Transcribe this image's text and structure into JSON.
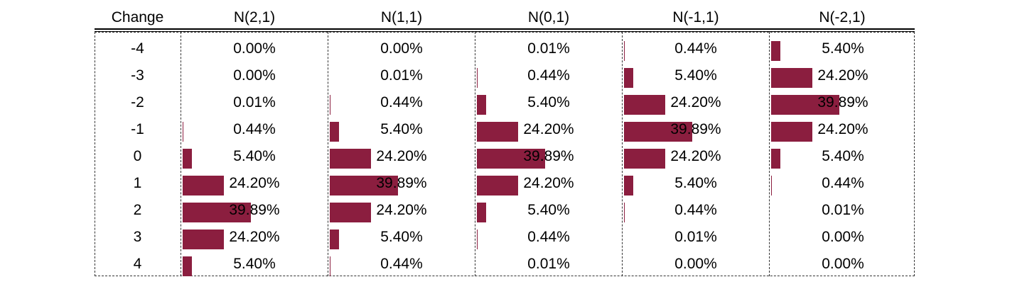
{
  "chart_data": {
    "type": "table",
    "bar_color": "#8b1e3f",
    "row_header": "Change",
    "columns": [
      "N(2,1)",
      "N(1,1)",
      "N(0,1)",
      "N(-1,1)",
      "N(-2,1)"
    ],
    "rows": [
      "-4",
      "-3",
      "-2",
      "-1",
      "0",
      "1",
      "2",
      "3",
      "4"
    ],
    "values": [
      [
        0.0,
        0.0,
        0.01,
        0.44,
        5.4
      ],
      [
        0.0,
        0.01,
        0.44,
        5.4,
        24.2
      ],
      [
        0.01,
        0.44,
        5.4,
        24.2,
        39.89
      ],
      [
        0.44,
        5.4,
        24.2,
        39.89,
        24.2
      ],
      [
        5.4,
        24.2,
        39.89,
        24.2,
        5.4
      ],
      [
        24.2,
        39.89,
        24.2,
        5.4,
        0.44
      ],
      [
        39.89,
        24.2,
        5.4,
        0.44,
        0.01
      ],
      [
        24.2,
        5.4,
        0.44,
        0.01,
        0.0
      ],
      [
        5.4,
        0.44,
        0.01,
        0.0,
        0.0
      ]
    ],
    "labels": [
      [
        "0.00%",
        "0.00%",
        "0.01%",
        "0.44%",
        "5.40%"
      ],
      [
        "0.00%",
        "0.01%",
        "0.44%",
        "5.40%",
        "24.20%"
      ],
      [
        "0.01%",
        "0.44%",
        "5.40%",
        "24.20%",
        "39.89%"
      ],
      [
        "0.44%",
        "5.40%",
        "24.20%",
        "39.89%",
        "24.20%"
      ],
      [
        "5.40%",
        "24.20%",
        "39.89%",
        "24.20%",
        "5.40%"
      ],
      [
        "24.20%",
        "39.89%",
        "24.20%",
        "5.40%",
        "0.44%"
      ],
      [
        "39.89%",
        "24.20%",
        "5.40%",
        "0.44%",
        "0.01%"
      ],
      [
        "24.20%",
        "5.40%",
        "0.44%",
        "0.01%",
        "0.00%"
      ],
      [
        "5.40%",
        "0.44%",
        "0.01%",
        "0.00%",
        "0.00%"
      ]
    ],
    "bar_max": 39.89,
    "units": "%"
  }
}
